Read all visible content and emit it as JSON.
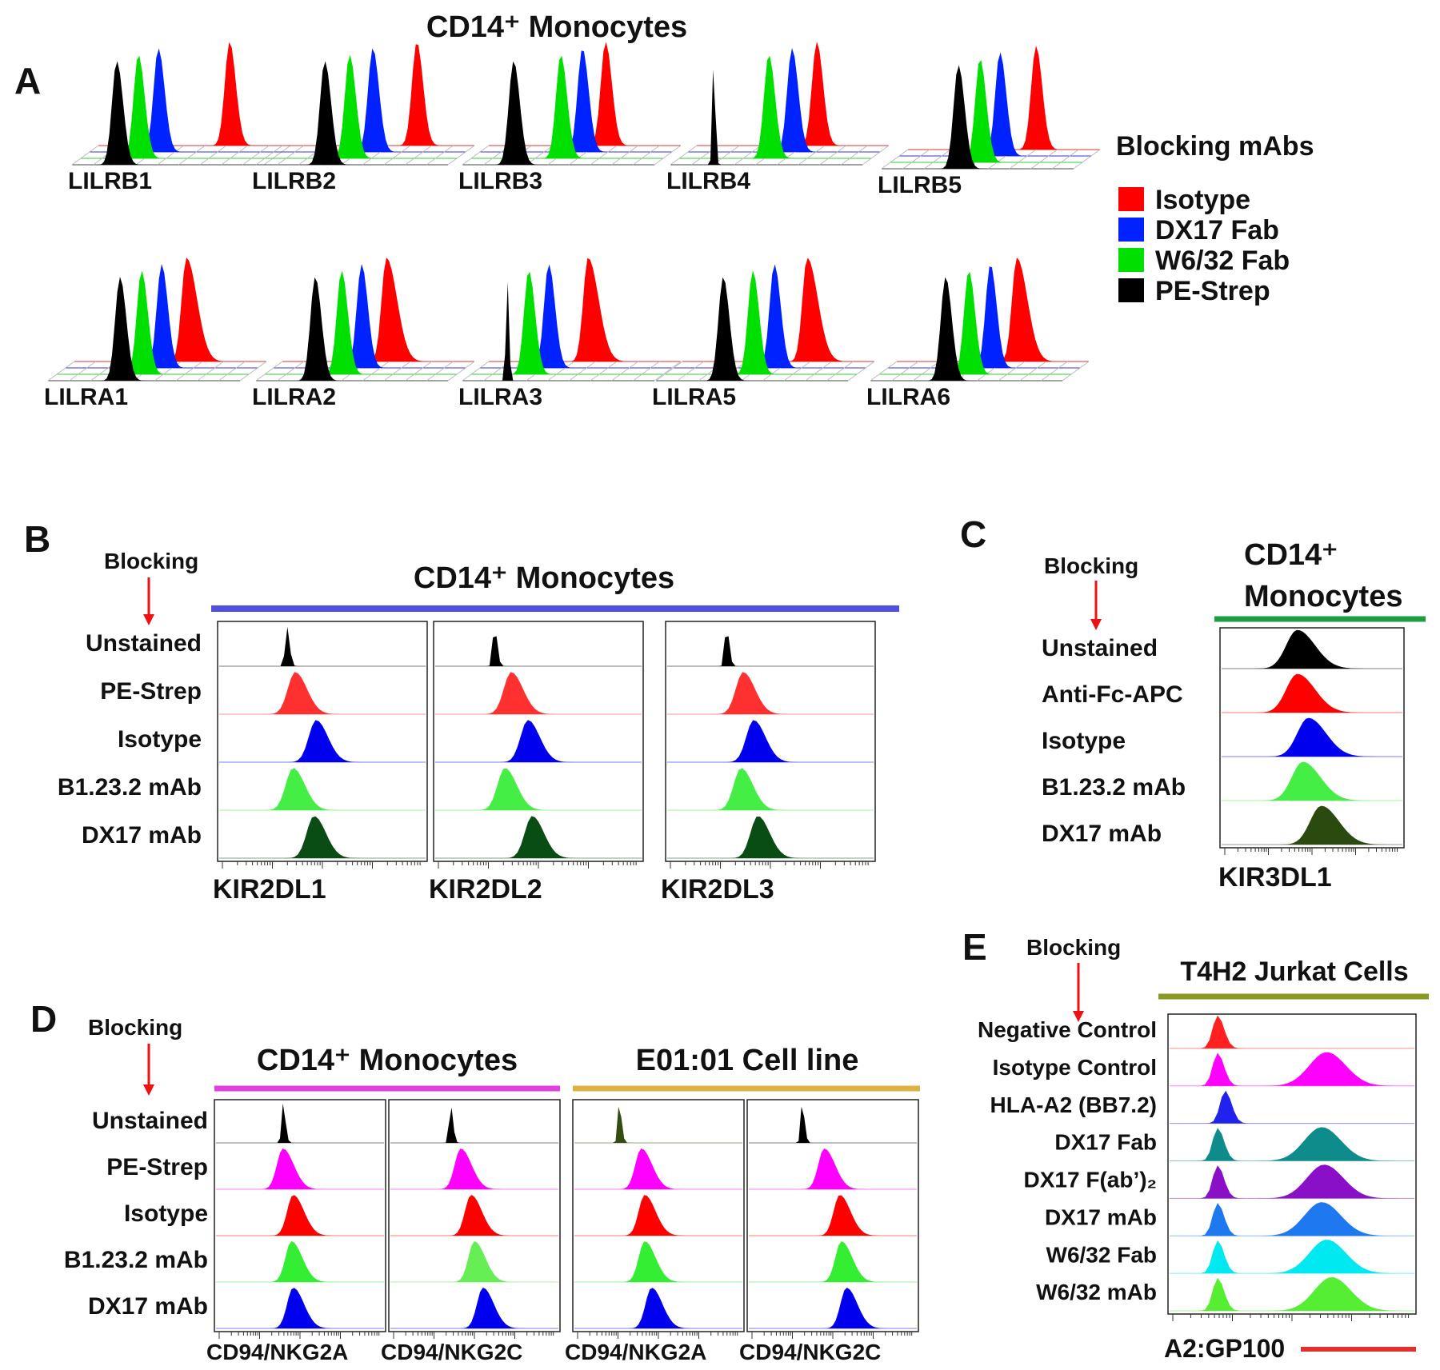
{
  "colors": {
    "Isotype": "#ff0000",
    "DX17 Fab": "#0022ff",
    "W6/32 Fab": "#00e000",
    "PE-Strep": "#000000",
    "unstained": "#000000",
    "red": "#ff2020",
    "blue": "#0000ee",
    "lightgreen": "#44ee44",
    "darkgreen": "#0a4d14",
    "olive": "#2a4a10",
    "magenta": "#ff00ff",
    "darkolive": "#334d10",
    "teal": "#0e8c8c",
    "purple": "#8a10c8",
    "azure": "#1e78f0",
    "cyan": "#00e8f0",
    "green": "#55ee33",
    "bar_b": "#5050e0",
    "bar_c": "#1e9e40",
    "bar_d1": "#e040e0",
    "bar_d2": "#e0b040",
    "bar_e": "#8a9a20",
    "red_line": "#e03030",
    "arrow": "#ee1111"
  },
  "title_main": "CD14⁺ Monocytes",
  "chart_data": [
    {
      "panel": "A",
      "type": "area",
      "title": "CD14⁺ Monocytes",
      "legend_title": "Blocking mAbs",
      "legend": [
        "Isotype",
        "DX17 Fab",
        "W6/32 Fab",
        "PE-Strep"
      ],
      "x_scale": "log fluorescence (relative, 0-1)",
      "histograms": [
        {
          "receptor": "LILRB1",
          "peaks": {
            "PE-Strep": 0.18,
            "W6/32 Fab": 0.26,
            "DX17 Fab": 0.33,
            "Isotype": 0.72
          }
        },
        {
          "receptor": "LILRB2",
          "peaks": {
            "PE-Strep": 0.33,
            "W6/32 Fab": 0.43,
            "DX17 Fab": 0.52,
            "Isotype": 0.74
          }
        },
        {
          "receptor": "LILRB3",
          "peaks": {
            "PE-Strep": 0.22,
            "W6/32 Fab": 0.46,
            "DX17 Fab": 0.54,
            "Isotype": 0.63
          }
        },
        {
          "receptor": "LILRB4",
          "peaks": {
            "PE-Strep": 0.17,
            "W6/32 Fab": 0.46,
            "DX17 Fab": 0.55,
            "Isotype": 0.65
          }
        },
        {
          "receptor": "LILRB5",
          "peaks": {
            "PE-Strep": 0.38,
            "W6/32 Fab": 0.46,
            "DX17 Fab": 0.53,
            "Isotype": 0.7
          }
        },
        {
          "receptor": "LILRA1",
          "peaks": {
            "PE-Strep": 0.35,
            "W6/32 Fab": 0.43,
            "DX17 Fab": 0.5,
            "Isotype": 0.6
          }
        },
        {
          "receptor": "LILRA2",
          "peaks": {
            "PE-Strep": 0.27,
            "W6/32 Fab": 0.38,
            "DX17 Fab": 0.45,
            "Isotype": 0.55
          }
        },
        {
          "receptor": "LILRA3",
          "peaks": {
            "PE-Strep": 0.18,
            "W6/32 Fab": 0.26,
            "DX17 Fab": 0.33,
            "Isotype": 0.52
          }
        },
        {
          "receptor": "LILRA5",
          "peaks": {
            "PE-Strep": 0.32,
            "W6/32 Fab": 0.45,
            "DX17 Fab": 0.53,
            "Isotype": 0.68
          }
        },
        {
          "receptor": "LILRA6",
          "peaks": {
            "PE-Strep": 0.37,
            "W6/32 Fab": 0.46,
            "DX17 Fab": 0.54,
            "Isotype": 0.65
          }
        }
      ]
    },
    {
      "panel": "B",
      "type": "area",
      "title": "CD14⁺ Monocytes",
      "blocking_label": "Blocking",
      "rows": [
        "Unstained",
        "PE-Strep",
        "Isotype",
        "B1.23.2 mAb",
        "DX17 mAb"
      ],
      "row_colors": [
        "#000000",
        "#ff3030",
        "#0000ee",
        "#44ee44",
        "#0a4d14"
      ],
      "panels": [
        {
          "xlabel": "KIR2DL1",
          "peaks": [
            0.33,
            0.37,
            0.47,
            0.36,
            0.46
          ]
        },
        {
          "xlabel": "KIR2DL2",
          "peaks": [
            0.29,
            0.37,
            0.45,
            0.34,
            0.47
          ]
        },
        {
          "xlabel": "KIR2DL3",
          "peaks": [
            0.29,
            0.37,
            0.42,
            0.36,
            0.44
          ]
        }
      ]
    },
    {
      "panel": "C",
      "type": "area",
      "title_line1": "CD14⁺",
      "title_line2": "Monocytes",
      "blocking_label": "Blocking",
      "rows": [
        "Unstained",
        "Anti-Fc-APC",
        "Isotype",
        "B1.23.2 mAb",
        "DX17 mAb"
      ],
      "row_colors": [
        "#000000",
        "#ff0000",
        "#0000ee",
        "#44ee44",
        "#2a4a10"
      ],
      "panels": [
        {
          "xlabel": "KIR3DL1",
          "peaks": [
            0.42,
            0.42,
            0.48,
            0.45,
            0.55
          ]
        }
      ]
    },
    {
      "panel": "D",
      "type": "area",
      "blocking_label": "Blocking",
      "group1": "CD14⁺ Monocytes",
      "group2": "E01:01 Cell line",
      "rows": [
        "Unstained",
        "PE-Strep",
        "Isotype",
        "B1.23.2 mAb",
        "DX17 mAb"
      ],
      "row_colors": [
        "#000000",
        "#ff00ff",
        "#ff0000",
        "#33ee33",
        "#0000ee"
      ],
      "panels": [
        {
          "xlabel": "CD94/NKG2A",
          "peaks": [
            0.4,
            0.4,
            0.46,
            0.45,
            0.46
          ]
        },
        {
          "xlabel": "CD94/NKG2C",
          "peaks": [
            0.36,
            0.42,
            0.48,
            0.5,
            0.55
          ]
        },
        {
          "xlabel": "CD94/NKG2A",
          "peaks": [
            0.27,
            0.4,
            0.42,
            0.42,
            0.46
          ]
        },
        {
          "xlabel": "CD94/NKG2C",
          "peaks": [
            0.32,
            0.45,
            0.54,
            0.55,
            0.58
          ]
        }
      ]
    },
    {
      "panel": "E",
      "type": "area",
      "title": "T4H2 Jurkat Cells",
      "blocking_label": "Blocking",
      "xlabel": "A2:GP100",
      "rows": [
        "Negative Control",
        "Isotype Control",
        "HLA-A2 (BB7.2)",
        "DX17 Fab",
        "DX17 F(ab’)₂",
        "DX17 mAb",
        "W6/32 Fab",
        "W6/32 mAb"
      ],
      "row_colors": [
        "#ff2020",
        "#ff00ff",
        "#2222ee",
        "#0e8c8c",
        "#8a10c8",
        "#1e78f0",
        "#00e8f0",
        "#55ee33"
      ],
      "peaks_low": [
        0.2,
        0.2,
        0.23,
        0.2,
        0.2,
        0.2,
        0.2,
        0.2
      ],
      "peaks_high": [
        null,
        0.64,
        null,
        0.62,
        0.63,
        0.62,
        0.64,
        0.66
      ]
    }
  ],
  "labels": {
    "A": "A",
    "B": "B",
    "C": "C",
    "D": "D",
    "E": "E"
  }
}
